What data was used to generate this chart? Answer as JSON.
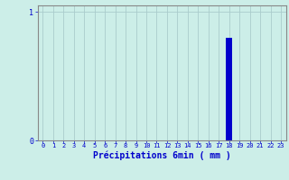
{
  "categories": [
    0,
    1,
    2,
    3,
    4,
    5,
    6,
    7,
    8,
    9,
    10,
    11,
    12,
    13,
    14,
    15,
    16,
    17,
    18,
    19,
    20,
    21,
    22,
    23
  ],
  "values": [
    0,
    0,
    0,
    0,
    0,
    0,
    0,
    0,
    0,
    0,
    0,
    0,
    0,
    0,
    0,
    0,
    0,
    0,
    0.8,
    0,
    0,
    0,
    0,
    0
  ],
  "bar_color": "#0000cc",
  "background_color": "#cceee8",
  "grid_color": "#aacccc",
  "axis_color": "#0000cc",
  "tick_color": "#0000cc",
  "spine_color": "#888888",
  "xlabel": "Précipitations 6min ( mm )",
  "xlabel_fontsize": 7,
  "tick_fontsize": 5,
  "ytick_fontsize": 6,
  "ylim": [
    0,
    1.05
  ],
  "xlim": [
    -0.5,
    23.5
  ],
  "yticks": [
    0,
    1
  ],
  "xticks": [
    0,
    1,
    2,
    3,
    4,
    5,
    6,
    7,
    8,
    9,
    10,
    11,
    12,
    13,
    14,
    15,
    16,
    17,
    18,
    19,
    20,
    21,
    22,
    23
  ],
  "bar_width": 0.6
}
